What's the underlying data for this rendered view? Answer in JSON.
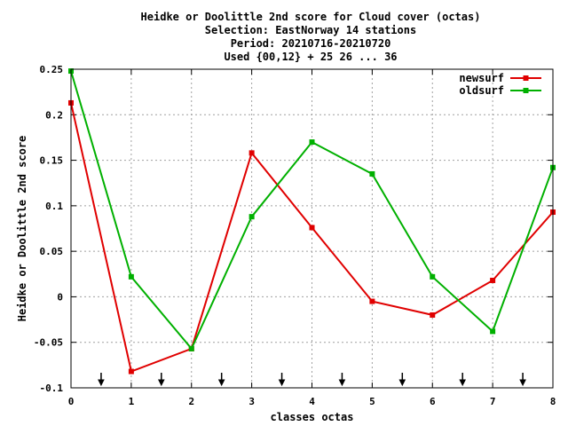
{
  "chart_data": {
    "type": "line",
    "title_lines": [
      "Heidke or Doolittle 2nd score  for Cloud cover (octas)",
      "Selection: EastNorway     14 stations",
      "Period: 20210716-20210720",
      "Used {00,12} + 25 26 ... 36"
    ],
    "xlabel": "classes octas",
    "ylabel": "Heidke or Doolittle 2nd score",
    "xlim": [
      0,
      8
    ],
    "ylim": [
      -0.1,
      0.25
    ],
    "x_ticks": [
      0,
      1,
      2,
      3,
      4,
      5,
      6,
      7,
      8
    ],
    "x_tick_labels": [
      "0",
      "1",
      "2",
      "3",
      "4",
      "5",
      "6",
      "7",
      "8"
    ],
    "y_ticks": [
      -0.1,
      -0.05,
      0,
      0.05,
      0.1,
      0.15,
      0.2,
      0.25
    ],
    "y_tick_labels": [
      "-0.1",
      "-0.05",
      "0",
      "0.05",
      "0.1",
      "0.15",
      "0.2",
      "0.25"
    ],
    "grid": true,
    "legend_position": "top-right",
    "class_boundary_arrows": [
      0.5,
      1.5,
      2.5,
      3.5,
      4.5,
      5.5,
      6.5,
      7.5
    ],
    "x": [
      0,
      1,
      2,
      3,
      4,
      5,
      6,
      7,
      8
    ],
    "series": [
      {
        "name": "newsurf",
        "color": "#e00000",
        "values": [
          0.213,
          -0.082,
          -0.057,
          0.158,
          0.076,
          -0.005,
          -0.02,
          0.018,
          0.093
        ]
      },
      {
        "name": "oldsurf",
        "color": "#00b000",
        "values": [
          0.248,
          0.022,
          -0.057,
          0.088,
          0.17,
          0.135,
          0.022,
          -0.038,
          0.142
        ]
      }
    ]
  }
}
